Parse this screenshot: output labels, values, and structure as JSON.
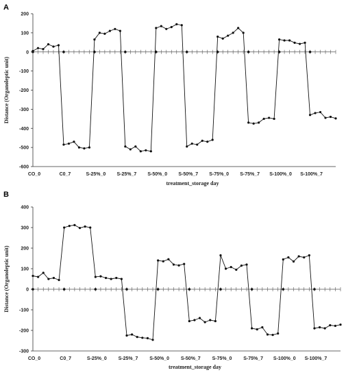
{
  "chart_data": [
    {
      "panel": "A",
      "type": "line",
      "xlabel": "treatment_storage day",
      "ylabel": "Distance (Organoleptic unit)",
      "ylim": [
        -600,
        200
      ],
      "yticks": [
        200,
        100,
        0,
        -100,
        -200,
        -300,
        -400,
        -500,
        -600
      ],
      "grid": false,
      "legend": "none",
      "category_labels": [
        "CO_0",
        "C0_7",
        "S-25%_0",
        "S-25%_7",
        "S-50%_0",
        "S-50%_7",
        "S-75%_0",
        "S-75%_7",
        "S-100%_0",
        "S-100%_7"
      ],
      "points_per_group": 6,
      "series": [
        {
          "values": [
            5,
            20,
            15,
            40,
            28,
            35,
            -485,
            -480,
            -470,
            -500,
            -505,
            -500,
            65,
            100,
            95,
            110,
            120,
            110,
            -495,
            -510,
            -495,
            -520,
            -515,
            -520,
            125,
            135,
            120,
            130,
            145,
            140,
            -495,
            -480,
            -485,
            -465,
            -470,
            -460,
            80,
            70,
            85,
            100,
            125,
            100,
            -370,
            -375,
            -370,
            -350,
            -345,
            -350,
            65,
            60,
            60,
            48,
            42,
            48,
            -330,
            -320,
            -315,
            -345,
            -340,
            -348
          ]
        }
      ],
      "zero_markers": [
        0,
        1,
        2,
        3,
        4,
        5,
        6,
        7,
        8,
        9
      ]
    },
    {
      "panel": "B",
      "type": "line",
      "xlabel": "treatment_storage day",
      "ylabel": "Distance (Organoleptic unit)",
      "ylim": [
        -300,
        400
      ],
      "yticks": [
        400,
        300,
        200,
        100,
        0,
        -100,
        -200,
        -300
      ],
      "grid": false,
      "legend": "none",
      "category_labels": [
        "CO_0",
        "C0_7",
        "S-25%_0",
        "S-25%_7",
        "S-50%_0",
        "S-50%_7",
        "S-75%_0",
        "S-75%_7",
        "S-100%_0",
        "S-100%_7"
      ],
      "points_per_group": 6,
      "series": [
        {
          "values": [
            65,
            60,
            80,
            50,
            55,
            45,
            300,
            308,
            312,
            298,
            305,
            300,
            60,
            63,
            55,
            50,
            55,
            50,
            -225,
            -220,
            -232,
            -236,
            -238,
            -246,
            140,
            136,
            146,
            120,
            116,
            123,
            -155,
            -150,
            -140,
            -160,
            -150,
            -155,
            165,
            100,
            108,
            95,
            115,
            120,
            -190,
            -195,
            -185,
            -220,
            -222,
            -215,
            145,
            155,
            135,
            160,
            155,
            165,
            -190,
            -185,
            -190,
            -175,
            -178,
            -172
          ]
        }
      ],
      "zero_markers": [
        0,
        1,
        2,
        3,
        4,
        5,
        6,
        7,
        8,
        9
      ]
    }
  ]
}
